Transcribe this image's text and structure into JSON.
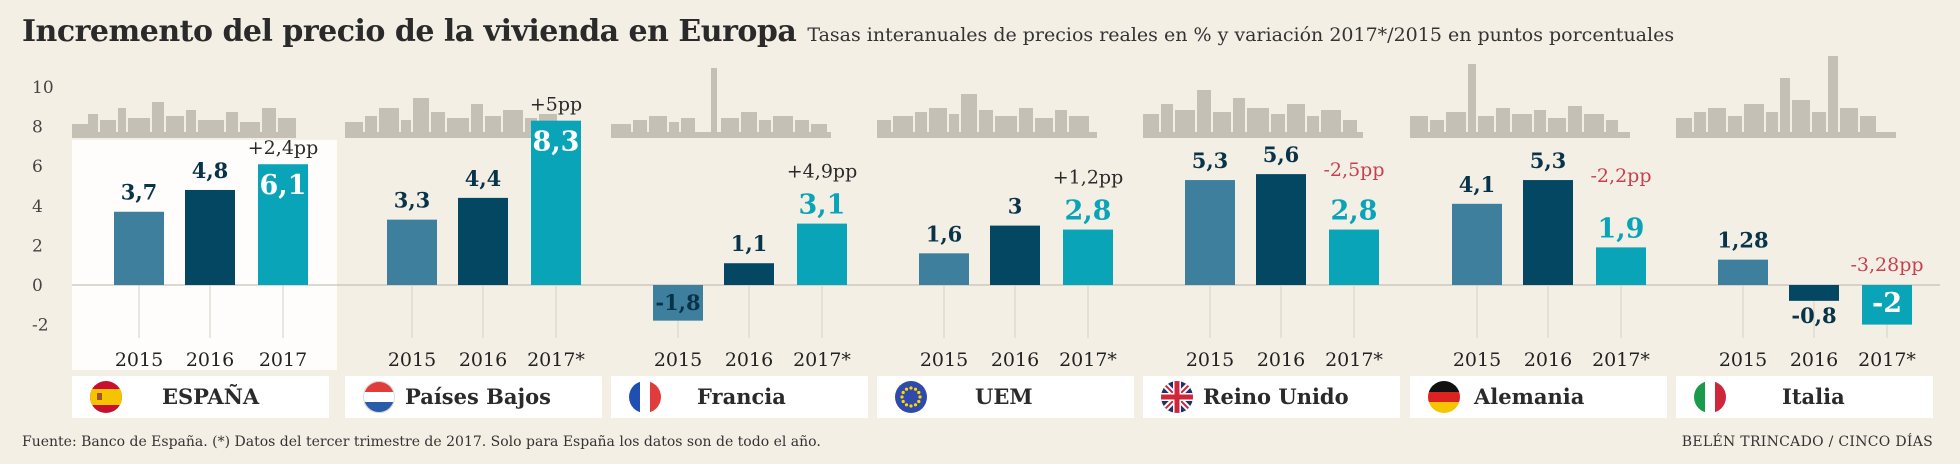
{
  "title": "Incremento del precio de la vivienda en Europa",
  "subtitle": "Tasas interanuales de precios reales en % y variación 2017*/2015 en puntos porcentuales",
  "source": "Fuente: Banco de España. (*) Datos del tercer trimestre de 2017. Solo para España los datos son de todo el año.",
  "credit": "BELÉN TRINCADO / CINCO DÍAS",
  "colors": {
    "c2015": "#3d7f9c",
    "c2016": "#034763",
    "c2017": "#0aa4b8",
    "negative_change": "#c8404f",
    "positive_change": "#2a2a2a",
    "skyline": "#c4c0b6",
    "highlight_panel": "#ffffff"
  },
  "chart_data": {
    "type": "bar",
    "ylim": [
      -2,
      10
    ],
    "yticks": [
      "10",
      "8",
      "6",
      "4",
      "2",
      "0",
      "-2"
    ],
    "highlight": "España",
    "groups": [
      {
        "country": "ESPAÑA",
        "flag": "es-flag",
        "categories": [
          "2015",
          "2016",
          "2017"
        ],
        "values": [
          3.7,
          4.8,
          6.1
        ],
        "labels": [
          "3,7",
          "4,8",
          "6,1"
        ],
        "change": "+2,4pp",
        "change_sign": "positive"
      },
      {
        "country": "Países Bajos",
        "flag": "nl-flag",
        "categories": [
          "2015",
          "2016",
          "2017*"
        ],
        "values": [
          3.3,
          4.4,
          8.3
        ],
        "labels": [
          "3,3",
          "4,4",
          "8,3"
        ],
        "change": "+5pp",
        "change_sign": "positive"
      },
      {
        "country": "Francia",
        "flag": "fr-flag",
        "categories": [
          "2015",
          "2016",
          "2017*"
        ],
        "values": [
          -1.8,
          1.1,
          3.1
        ],
        "labels": [
          "-1,8",
          "1,1",
          "3,1"
        ],
        "change": "+4,9pp",
        "change_sign": "positive"
      },
      {
        "country": "UEM",
        "flag": "eu-flag",
        "categories": [
          "2015",
          "2016",
          "2017*"
        ],
        "values": [
          1.6,
          3,
          2.8
        ],
        "labels": [
          "1,6",
          "3",
          "2,8"
        ],
        "change": "+1,2pp",
        "change_sign": "positive"
      },
      {
        "country": "Reino Unido",
        "flag": "uk-flag",
        "categories": [
          "2015",
          "2016",
          "2017*"
        ],
        "values": [
          5.3,
          5.6,
          2.8
        ],
        "labels": [
          "5,3",
          "5,6",
          "2,8"
        ],
        "change": "-2,5pp",
        "change_sign": "negative"
      },
      {
        "country": "Alemania",
        "flag": "de-flag",
        "categories": [
          "2015",
          "2016",
          "2017*"
        ],
        "values": [
          4.1,
          5.3,
          1.9
        ],
        "labels": [
          "4,1",
          "5,3",
          "1,9"
        ],
        "change": "-2,2pp",
        "change_sign": "negative"
      },
      {
        "country": "Italia",
        "flag": "it-flag",
        "categories": [
          "2015",
          "2016",
          "2017*"
        ],
        "values": [
          1.28,
          -0.8,
          -2
        ],
        "labels": [
          "1,28",
          "-0,8",
          "-2"
        ],
        "change": "-3,28pp",
        "change_sign": "negative"
      }
    ]
  }
}
